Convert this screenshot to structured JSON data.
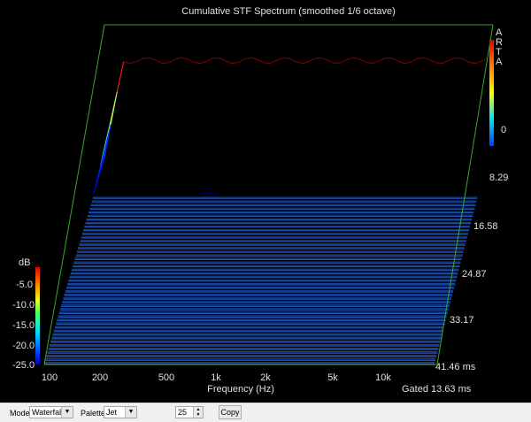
{
  "window": {
    "plot_title": "Cumulative STF Spectrum (smoothed 1/6 octave)"
  },
  "watermark": [
    "A",
    "R",
    "T",
    "A"
  ],
  "db_scale": {
    "title": "dB",
    "labels": [
      "-5.0",
      "-10.0",
      "-15.0",
      "-20.0",
      "-25.0"
    ]
  },
  "colorbar": {
    "top_label": "0"
  },
  "time_axis": {
    "labels": [
      "8.29",
      "16.58",
      "24.87",
      "33.17",
      "41.46 ms"
    ]
  },
  "freq_axis": {
    "labels": [
      "100",
      "200",
      "500",
      "1k",
      "2k",
      "5k",
      "10k"
    ],
    "xlabel": "Frequency (Hz)"
  },
  "gate_text": "Gated 13.63 ms",
  "chart_data": {
    "type": "area",
    "title": "Cumulative STF Spectrum (smoothed 1/6 octave)",
    "xlabel": "Frequency (Hz)",
    "ylabel": "dB",
    "x_scale": "log",
    "xlim": [
      100,
      20000
    ],
    "ylim": [
      -25,
      0
    ],
    "zlim_ms": [
      0,
      41.46
    ],
    "colormap": "Jet",
    "first_slice_db": {
      "freq": [
        100,
        200,
        400,
        700,
        1000,
        1500,
        2000,
        3000,
        5000,
        10000,
        20000
      ],
      "db": [
        -25,
        -2,
        -1,
        -1.5,
        -2,
        -1.5,
        -1,
        -1.2,
        -1,
        -1.5,
        -3
      ]
    }
  },
  "toolbar": {
    "mode_label": "Mode",
    "mode_value": "Waterfall",
    "palette_label": "Palette",
    "palette_value": "Jet",
    "slices_value": "25",
    "copy_label": "Copy"
  },
  "colors": {
    "background": "#000000",
    "floor": "#1f5bbf",
    "frame": "#3aa82a"
  }
}
